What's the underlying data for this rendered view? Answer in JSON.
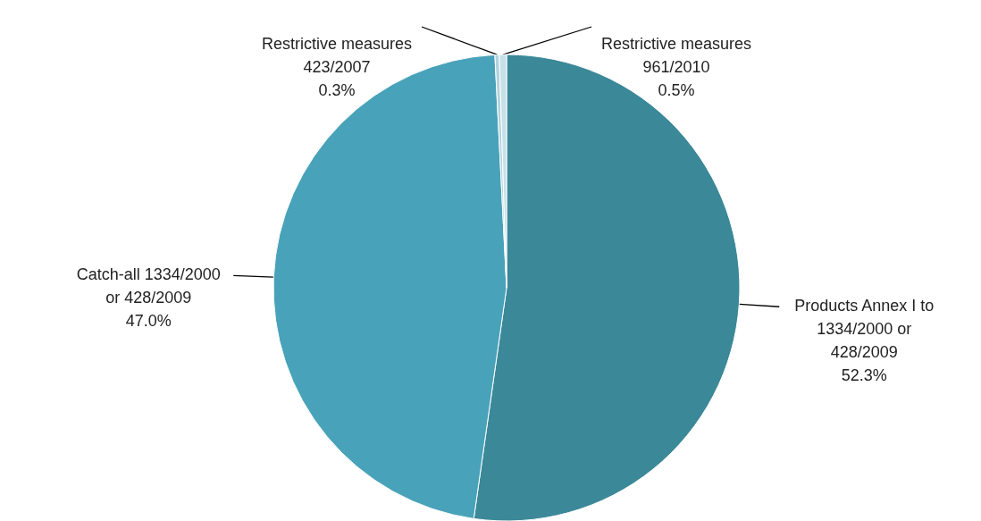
{
  "chart_data": {
    "type": "pie",
    "categories": [
      "Products Annex I to 1334/2000 or 428/2009",
      "Catch-all 1334/2000 or 428/2009",
      "Restrictive measures 423/2007",
      "Restrictive measures 961/2010"
    ],
    "values": [
      52.3,
      47.0,
      0.3,
      0.5
    ],
    "colors": [
      "#3b8898",
      "#48a2b9",
      "#b2d3dd",
      "#c6e0e8"
    ],
    "value_labels": [
      "52.3%",
      "47.0%",
      "0.3%",
      "0.5%"
    ]
  }
}
